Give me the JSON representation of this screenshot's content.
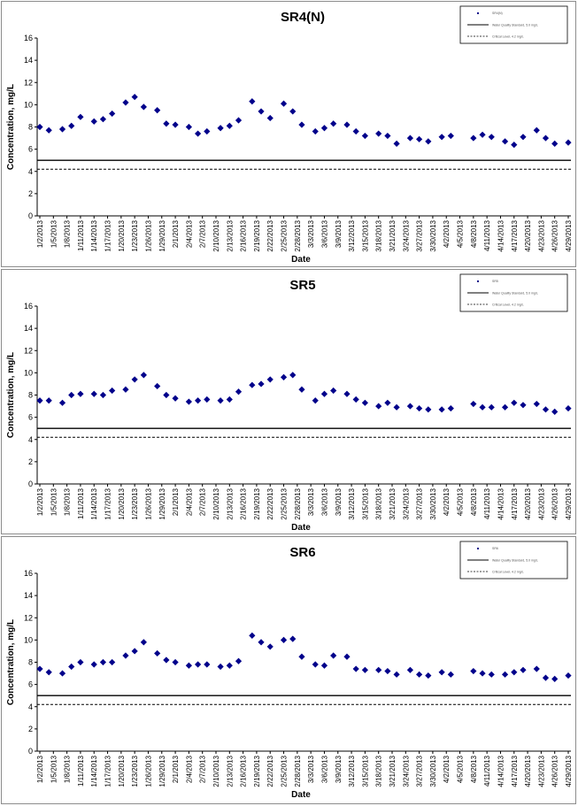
{
  "chart_data": [
    {
      "type": "scatter",
      "title": "SR4(N)",
      "xlabel": "Date",
      "ylabel": "Concentration, mg/L",
      "ylim": [
        0,
        16
      ],
      "yticks": [
        0,
        2,
        4,
        6,
        8,
        10,
        12,
        14,
        16
      ],
      "grid": false,
      "legend": "top-right",
      "tick_labels": [
        "1/2/2013",
        "1/5/2013",
        "1/8/2013",
        "1/11/2013",
        "1/14/2013",
        "1/17/2013",
        "1/20/2013",
        "1/23/2013",
        "1/26/2013",
        "1/29/2013",
        "2/1/2013",
        "2/4/2013",
        "2/7/2013",
        "2/10/2013",
        "2/13/2013",
        "2/16/2013",
        "2/19/2013",
        "2/22/2013",
        "2/25/2013",
        "2/28/2013",
        "3/3/2013",
        "3/6/2013",
        "3/9/2013",
        "3/12/2013",
        "3/15/2013",
        "3/18/2013",
        "3/21/2013",
        "3/24/2013",
        "3/27/2013",
        "3/30/2013",
        "4/2/2013",
        "4/5/2013",
        "4/8/2013",
        "4/11/2013",
        "4/14/2013",
        "4/17/2013",
        "4/20/2013",
        "4/23/2013",
        "4/26/2013",
        "4/29/2013"
      ],
      "legend_labels": [
        "SR4(N)",
        "Water Quality Standard, 5.0 mg/L",
        "Critical Level, 4.2 mg/L"
      ],
      "reference_lines": [
        5.0,
        4.2
      ],
      "points": [
        [
          "1/2/2013",
          8.0
        ],
        [
          "1/4/2013",
          7.7
        ],
        [
          "1/7/2013",
          7.8
        ],
        [
          "1/9/2013",
          8.1
        ],
        [
          "1/11/2013",
          8.9
        ],
        [
          "1/14/2013",
          8.5
        ],
        [
          "1/16/2013",
          8.7
        ],
        [
          "1/18/2013",
          9.2
        ],
        [
          "1/21/2013",
          10.2
        ],
        [
          "1/23/2013",
          10.7
        ],
        [
          "1/25/2013",
          9.8
        ],
        [
          "1/28/2013",
          9.5
        ],
        [
          "1/30/2013",
          8.3
        ],
        [
          "2/1/2013",
          8.2
        ],
        [
          "2/4/2013",
          8.0
        ],
        [
          "2/6/2013",
          7.4
        ],
        [
          "2/8/2013",
          7.6
        ],
        [
          "2/11/2013",
          7.9
        ],
        [
          "2/13/2013",
          8.1
        ],
        [
          "2/15/2013",
          8.6
        ],
        [
          "2/18/2013",
          10.3
        ],
        [
          "2/20/2013",
          9.4
        ],
        [
          "2/22/2013",
          8.8
        ],
        [
          "2/25/2013",
          10.1
        ],
        [
          "2/27/2013",
          9.4
        ],
        [
          "3/1/2013",
          8.2
        ],
        [
          "3/4/2013",
          7.6
        ],
        [
          "3/6/2013",
          7.9
        ],
        [
          "3/8/2013",
          8.3
        ],
        [
          "3/11/2013",
          8.2
        ],
        [
          "3/13/2013",
          7.6
        ],
        [
          "3/15/2013",
          7.2
        ],
        [
          "3/18/2013",
          7.4
        ],
        [
          "3/20/2013",
          7.2
        ],
        [
          "3/22/2013",
          6.5
        ],
        [
          "3/25/2013",
          7.0
        ],
        [
          "3/27/2013",
          6.9
        ],
        [
          "3/29/2013",
          6.7
        ],
        [
          "4/1/2013",
          7.1
        ],
        [
          "4/3/2013",
          7.2
        ],
        [
          "4/8/2013",
          7.0
        ],
        [
          "4/10/2013",
          7.3
        ],
        [
          "4/12/2013",
          7.1
        ],
        [
          "4/15/2013",
          6.7
        ],
        [
          "4/17/2013",
          6.4
        ],
        [
          "4/19/2013",
          7.1
        ],
        [
          "4/22/2013",
          7.7
        ],
        [
          "4/24/2013",
          7.0
        ],
        [
          "4/26/2013",
          6.5
        ],
        [
          "4/29/2013",
          6.6
        ]
      ]
    },
    {
      "type": "scatter",
      "title": "SR5",
      "xlabel": "Date",
      "ylabel": "Concentration, mg/L",
      "ylim": [
        0,
        16
      ],
      "yticks": [
        0,
        2,
        4,
        6,
        8,
        10,
        12,
        14,
        16
      ],
      "grid": false,
      "legend": "top-right",
      "tick_labels": [
        "1/2/2013",
        "1/5/2013",
        "1/8/2013",
        "1/11/2013",
        "1/14/2013",
        "1/17/2013",
        "1/20/2013",
        "1/23/2013",
        "1/26/2013",
        "1/29/2013",
        "2/1/2013",
        "2/4/2013",
        "2/7/2013",
        "2/10/2013",
        "2/13/2013",
        "2/16/2013",
        "2/19/2013",
        "2/22/2013",
        "2/25/2013",
        "2/28/2013",
        "3/3/2013",
        "3/6/2013",
        "3/9/2013",
        "3/12/2013",
        "3/15/2013",
        "3/18/2013",
        "3/21/2013",
        "3/24/2013",
        "3/27/2013",
        "3/30/2013",
        "4/2/2013",
        "4/5/2013",
        "4/8/2013",
        "4/11/2013",
        "4/14/2013",
        "4/17/2013",
        "4/20/2013",
        "4/23/2013",
        "4/26/2013",
        "4/29/2013"
      ],
      "legend_labels": [
        "SR5",
        "Water Quality Standard, 5.0 mg/L",
        "Critical Level, 4.2 mg/L"
      ],
      "reference_lines": [
        5.0,
        4.2
      ],
      "points": [
        [
          "1/2/2013",
          7.5
        ],
        [
          "1/4/2013",
          7.5
        ],
        [
          "1/7/2013",
          7.3
        ],
        [
          "1/9/2013",
          8.0
        ],
        [
          "1/11/2013",
          8.1
        ],
        [
          "1/14/2013",
          8.1
        ],
        [
          "1/16/2013",
          8.0
        ],
        [
          "1/18/2013",
          8.4
        ],
        [
          "1/21/2013",
          8.5
        ],
        [
          "1/23/2013",
          9.4
        ],
        [
          "1/25/2013",
          9.8
        ],
        [
          "1/28/2013",
          8.8
        ],
        [
          "1/30/2013",
          8.0
        ],
        [
          "2/1/2013",
          7.7
        ],
        [
          "2/4/2013",
          7.4
        ],
        [
          "2/6/2013",
          7.5
        ],
        [
          "2/8/2013",
          7.6
        ],
        [
          "2/11/2013",
          7.5
        ],
        [
          "2/13/2013",
          7.6
        ],
        [
          "2/15/2013",
          8.3
        ],
        [
          "2/18/2013",
          8.9
        ],
        [
          "2/20/2013",
          9.0
        ],
        [
          "2/22/2013",
          9.4
        ],
        [
          "2/25/2013",
          9.6
        ],
        [
          "2/27/2013",
          9.8
        ],
        [
          "3/1/2013",
          8.5
        ],
        [
          "3/4/2013",
          7.5
        ],
        [
          "3/6/2013",
          8.1
        ],
        [
          "3/8/2013",
          8.4
        ],
        [
          "3/11/2013",
          8.1
        ],
        [
          "3/13/2013",
          7.6
        ],
        [
          "3/15/2013",
          7.3
        ],
        [
          "3/18/2013",
          7.0
        ],
        [
          "3/20/2013",
          7.3
        ],
        [
          "3/22/2013",
          6.9
        ],
        [
          "3/25/2013",
          7.0
        ],
        [
          "3/27/2013",
          6.8
        ],
        [
          "3/29/2013",
          6.7
        ],
        [
          "4/1/2013",
          6.7
        ],
        [
          "4/3/2013",
          6.8
        ],
        [
          "4/8/2013",
          7.2
        ],
        [
          "4/10/2013",
          6.9
        ],
        [
          "4/12/2013",
          6.9
        ],
        [
          "4/15/2013",
          6.9
        ],
        [
          "4/17/2013",
          7.3
        ],
        [
          "4/19/2013",
          7.1
        ],
        [
          "4/22/2013",
          7.2
        ],
        [
          "4/24/2013",
          6.7
        ],
        [
          "4/26/2013",
          6.5
        ],
        [
          "4/29/2013",
          6.8
        ]
      ]
    },
    {
      "type": "scatter",
      "title": "SR6",
      "xlabel": "Date",
      "ylabel": "Concentration, mg/L",
      "ylim": [
        0,
        16
      ],
      "yticks": [
        0,
        2,
        4,
        6,
        8,
        10,
        12,
        14,
        16
      ],
      "grid": false,
      "legend": "top-right",
      "tick_labels": [
        "1/2/2013",
        "1/5/2013",
        "1/8/2013",
        "1/11/2013",
        "1/14/2013",
        "1/17/2013",
        "1/20/2013",
        "1/23/2013",
        "1/26/2013",
        "1/29/2013",
        "2/1/2013",
        "2/4/2013",
        "2/7/2013",
        "2/10/2013",
        "2/13/2013",
        "2/16/2013",
        "2/19/2013",
        "2/22/2013",
        "2/25/2013",
        "2/28/2013",
        "3/3/2013",
        "3/6/2013",
        "3/9/2013",
        "3/12/2013",
        "3/15/2013",
        "3/18/2013",
        "3/21/2013",
        "3/24/2013",
        "3/27/2013",
        "3/30/2013",
        "4/2/2013",
        "4/5/2013",
        "4/8/2013",
        "4/11/2013",
        "4/14/2013",
        "4/17/2013",
        "4/20/2013",
        "4/23/2013",
        "4/26/2013",
        "4/29/2013"
      ],
      "legend_labels": [
        "SR6",
        "Water Quality Standard, 5.0 mg/L",
        "Critical Level, 4.2 mg/L"
      ],
      "reference_lines": [
        5.0,
        4.2
      ],
      "points": [
        [
          "1/2/2013",
          7.4
        ],
        [
          "1/4/2013",
          7.1
        ],
        [
          "1/7/2013",
          7.0
        ],
        [
          "1/9/2013",
          7.6
        ],
        [
          "1/11/2013",
          8.0
        ],
        [
          "1/14/2013",
          7.8
        ],
        [
          "1/16/2013",
          8.0
        ],
        [
          "1/18/2013",
          8.0
        ],
        [
          "1/21/2013",
          8.6
        ],
        [
          "1/23/2013",
          9.0
        ],
        [
          "1/25/2013",
          9.8
        ],
        [
          "1/28/2013",
          8.8
        ],
        [
          "1/30/2013",
          8.2
        ],
        [
          "2/1/2013",
          8.0
        ],
        [
          "2/4/2013",
          7.7
        ],
        [
          "2/6/2013",
          7.8
        ],
        [
          "2/8/2013",
          7.8
        ],
        [
          "2/11/2013",
          7.6
        ],
        [
          "2/13/2013",
          7.7
        ],
        [
          "2/15/2013",
          8.1
        ],
        [
          "2/18/2013",
          10.4
        ],
        [
          "2/20/2013",
          9.8
        ],
        [
          "2/22/2013",
          9.4
        ],
        [
          "2/25/2013",
          10.0
        ],
        [
          "2/27/2013",
          10.1
        ],
        [
          "3/1/2013",
          8.5
        ],
        [
          "3/4/2013",
          7.8
        ],
        [
          "3/6/2013",
          7.7
        ],
        [
          "3/8/2013",
          8.6
        ],
        [
          "3/11/2013",
          8.5
        ],
        [
          "3/13/2013",
          7.4
        ],
        [
          "3/15/2013",
          7.3
        ],
        [
          "3/18/2013",
          7.3
        ],
        [
          "3/20/2013",
          7.2
        ],
        [
          "3/22/2013",
          6.9
        ],
        [
          "3/25/2013",
          7.3
        ],
        [
          "3/27/2013",
          6.9
        ],
        [
          "3/29/2013",
          6.8
        ],
        [
          "4/1/2013",
          7.1
        ],
        [
          "4/3/2013",
          6.9
        ],
        [
          "4/8/2013",
          7.2
        ],
        [
          "4/10/2013",
          7.0
        ],
        [
          "4/12/2013",
          6.9
        ],
        [
          "4/15/2013",
          6.9
        ],
        [
          "4/17/2013",
          7.1
        ],
        [
          "4/19/2013",
          7.3
        ],
        [
          "4/22/2013",
          7.4
        ],
        [
          "4/24/2013",
          6.6
        ],
        [
          "4/26/2013",
          6.5
        ],
        [
          "4/29/2013",
          6.8
        ]
      ]
    }
  ],
  "colors": {
    "marker": "#00008b",
    "reference_line": "#000000",
    "panel_border": "#8c8c8c"
  }
}
